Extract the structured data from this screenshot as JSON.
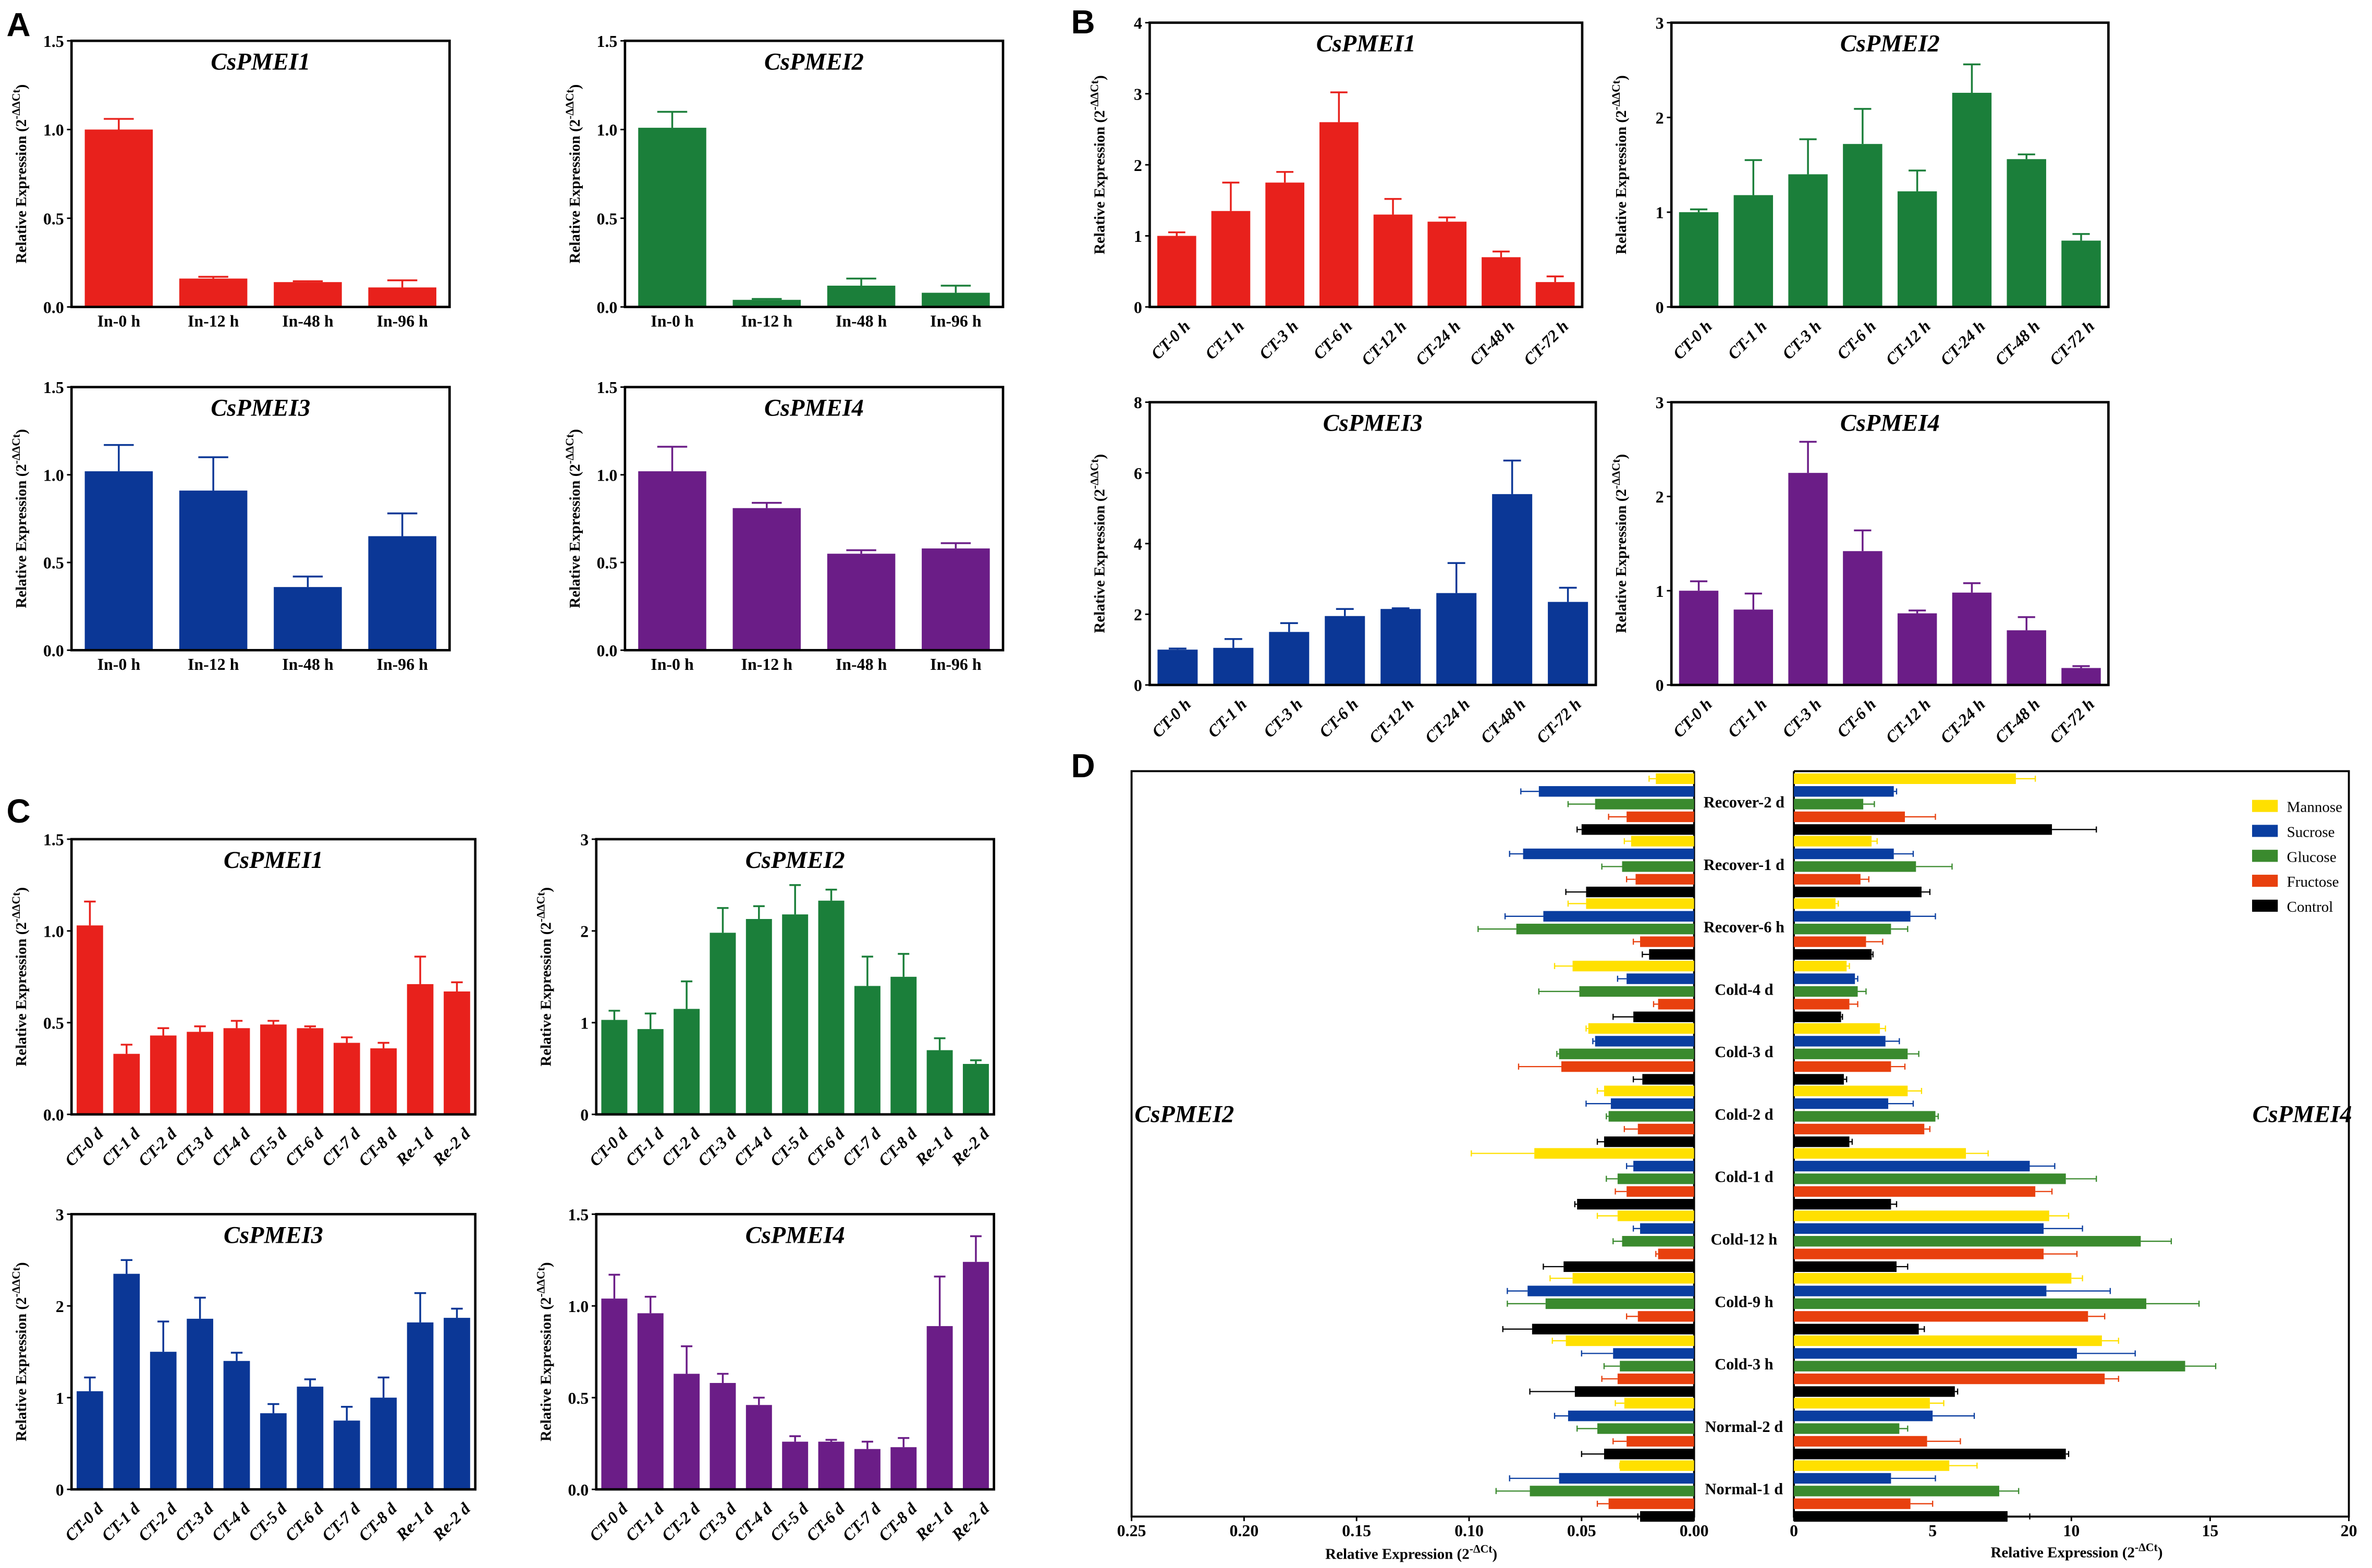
{
  "panels": {
    "A": "A",
    "B": "B",
    "C": "C",
    "D": "D"
  },
  "ylabel": [
    "Relative Expression (2",
    "-ΔΔCt",
    ")"
  ],
  "colors": {
    "red": "#e8211c",
    "green": "#1b7f3a",
    "blue": "#0b3796",
    "purple": "#6b1d87"
  },
  "chart_data": [
    {
      "panel": "A",
      "type": "bar",
      "title": "CsPMEI1",
      "color": "#e8211c",
      "categories": [
        "In-0 h",
        "In-12 h",
        "In-48 h",
        "In-96 h"
      ],
      "values": [
        1.0,
        0.16,
        0.14,
        0.11
      ],
      "errors": [
        0.06,
        0.01,
        0.005,
        0.04
      ],
      "ylim": [
        0,
        1.5
      ],
      "yticks": [
        0,
        0.5,
        1.0,
        1.5
      ],
      "yticklabels": [
        "0.0",
        "0.5",
        "1.0",
        "1.5"
      ]
    },
    {
      "panel": "A",
      "type": "bar",
      "title": "CsPMEI2",
      "color": "#1b7f3a",
      "categories": [
        "In-0 h",
        "In-12 h",
        "In-48 h",
        "In-96 h"
      ],
      "values": [
        1.01,
        0.04,
        0.12,
        0.08
      ],
      "errors": [
        0.09,
        0.005,
        0.04,
        0.04
      ],
      "ylim": [
        0,
        1.5
      ],
      "yticks": [
        0,
        0.5,
        1.0,
        1.5
      ],
      "yticklabels": [
        "0.0",
        "0.5",
        "1.0",
        "1.5"
      ]
    },
    {
      "panel": "A",
      "type": "bar",
      "title": "CsPMEI3",
      "color": "#0b3796",
      "categories": [
        "In-0 h",
        "In-12 h",
        "In-48 h",
        "In-96 h"
      ],
      "values": [
        1.02,
        0.91,
        0.36,
        0.65
      ],
      "errors": [
        0.15,
        0.19,
        0.06,
        0.13
      ],
      "ylim": [
        0,
        1.5
      ],
      "yticks": [
        0,
        0.5,
        1.0,
        1.5
      ],
      "yticklabels": [
        "0.0",
        "0.5",
        "1.0",
        "1.5"
      ]
    },
    {
      "panel": "A",
      "type": "bar",
      "title": "CsPMEI4",
      "color": "#6b1d87",
      "categories": [
        "In-0 h",
        "In-12 h",
        "In-48 h",
        "In-96 h"
      ],
      "values": [
        1.02,
        0.81,
        0.55,
        0.58
      ],
      "errors": [
        0.14,
        0.03,
        0.02,
        0.03
      ],
      "ylim": [
        0,
        1.5
      ],
      "yticks": [
        0,
        0.5,
        1.0,
        1.5
      ],
      "yticklabels": [
        "0.0",
        "0.5",
        "1.0",
        "1.5"
      ]
    },
    {
      "panel": "B",
      "type": "bar",
      "title": "CsPMEI1",
      "color": "#e8211c",
      "categories": [
        "CT-0 h",
        "CT-1 h",
        "CT-3 h",
        "CT-6 h",
        "CT-12 h",
        "CT-24 h",
        "CT-48 h",
        "CT-72 h"
      ],
      "values": [
        1.0,
        1.35,
        1.75,
        2.6,
        1.3,
        1.2,
        0.7,
        0.35
      ],
      "errors": [
        0.05,
        0.4,
        0.15,
        0.42,
        0.22,
        0.06,
        0.08,
        0.08
      ],
      "ylim": [
        0,
        4
      ],
      "yticks": [
        0,
        1,
        2,
        3,
        4
      ],
      "yticklabels": [
        "0",
        "1",
        "2",
        "3",
        "4"
      ]
    },
    {
      "panel": "B",
      "type": "bar",
      "title": "CsPMEI2",
      "color": "#1b7f3a",
      "categories": [
        "CT-0 h",
        "CT-1 h",
        "CT-3 h",
        "CT-6 h",
        "CT-12 h",
        "CT-24 h",
        "CT-48 h",
        "CT-72 h"
      ],
      "values": [
        1.0,
        1.18,
        1.4,
        1.72,
        1.22,
        2.26,
        1.56,
        0.7
      ],
      "errors": [
        0.03,
        0.37,
        0.37,
        0.37,
        0.22,
        0.3,
        0.05,
        0.07
      ],
      "ylim": [
        0,
        3
      ],
      "yticks": [
        0,
        1,
        2,
        3
      ],
      "yticklabels": [
        "0",
        "1",
        "2",
        "3"
      ]
    },
    {
      "panel": "B",
      "type": "bar",
      "title": "CsPMEI3",
      "color": "#0b3796",
      "categories": [
        "CT-0 h",
        "CT-1 h",
        "CT-3 h",
        "CT-6 h",
        "CT-12 h",
        "CT-24 h",
        "CT-48 h",
        "CT-72 h"
      ],
      "values": [
        1.0,
        1.05,
        1.5,
        1.95,
        2.15,
        2.6,
        5.4,
        2.35
      ],
      "errors": [
        0.03,
        0.25,
        0.25,
        0.2,
        0.02,
        0.85,
        0.95,
        0.4
      ],
      "ylim": [
        0,
        8
      ],
      "yticks": [
        0,
        2,
        4,
        6,
        8
      ],
      "yticklabels": [
        "0",
        "2",
        "4",
        "6",
        "8"
      ]
    },
    {
      "panel": "B",
      "type": "bar",
      "title": "CsPMEI4",
      "color": "#6b1d87",
      "categories": [
        "CT-0 h",
        "CT-1 h",
        "CT-3 h",
        "CT-6 h",
        "CT-12 h",
        "CT-24 h",
        "CT-48 h",
        "CT-72 h"
      ],
      "values": [
        1.0,
        0.8,
        2.25,
        1.42,
        0.76,
        0.98,
        0.58,
        0.18
      ],
      "errors": [
        0.1,
        0.17,
        0.33,
        0.22,
        0.03,
        0.1,
        0.14,
        0.02
      ],
      "ylim": [
        0,
        3
      ],
      "yticks": [
        0,
        1,
        2,
        3
      ],
      "yticklabels": [
        "0",
        "1",
        "2",
        "3"
      ]
    },
    {
      "panel": "C",
      "type": "bar",
      "title": "CsPMEI1",
      "color": "#e8211c",
      "categories": [
        "CT-0 d",
        "CT-1 d",
        "CT-2 d",
        "CT-3 d",
        "CT-4 d",
        "CT-5 d",
        "CT-6 d",
        "CT-7 d",
        "CT-8 d",
        "Re-1 d",
        "Re-2 d"
      ],
      "values": [
        1.03,
        0.33,
        0.43,
        0.45,
        0.47,
        0.49,
        0.47,
        0.39,
        0.36,
        0.71,
        0.67
      ],
      "errors": [
        0.13,
        0.05,
        0.04,
        0.03,
        0.04,
        0.02,
        0.01,
        0.03,
        0.03,
        0.15,
        0.05
      ],
      "ylim": [
        0,
        1.5
      ],
      "yticks": [
        0,
        0.5,
        1.0,
        1.5
      ],
      "yticklabels": [
        "0.0",
        "0.5",
        "1.0",
        "1.5"
      ]
    },
    {
      "panel": "C",
      "type": "bar",
      "title": "CsPMEI2",
      "color": "#1b7f3a",
      "categories": [
        "CT-0 d",
        "CT-1 d",
        "CT-2 d",
        "CT-3 d",
        "CT-4 d",
        "CT-5 d",
        "CT-6 d",
        "CT-7 d",
        "CT-8 d",
        "Re-1 d",
        "Re-2 d"
      ],
      "values": [
        1.03,
        0.93,
        1.15,
        1.98,
        2.13,
        2.18,
        2.33,
        1.4,
        1.5,
        0.7,
        0.55
      ],
      "errors": [
        0.1,
        0.17,
        0.3,
        0.27,
        0.14,
        0.32,
        0.12,
        0.32,
        0.25,
        0.13,
        0.04
      ],
      "ylim": [
        0,
        3
      ],
      "yticks": [
        0,
        1,
        2,
        3
      ],
      "yticklabels": [
        "0",
        "1",
        "2",
        "3"
      ]
    },
    {
      "panel": "C",
      "type": "bar",
      "title": "CsPMEI3",
      "color": "#0b3796",
      "categories": [
        "CT-0 d",
        "CT-1 d",
        "CT-2 d",
        "CT-3 d",
        "CT-4 d",
        "CT-5 d",
        "CT-6 d",
        "CT-7 d",
        "CT-8 d",
        "Re-1 d",
        "Re-2 d"
      ],
      "values": [
        1.07,
        2.35,
        1.5,
        1.86,
        1.4,
        0.83,
        1.12,
        0.75,
        1.0,
        1.82,
        1.87
      ],
      "errors": [
        0.15,
        0.15,
        0.33,
        0.23,
        0.09,
        0.1,
        0.08,
        0.15,
        0.22,
        0.32,
        0.1
      ],
      "ylim": [
        0,
        3
      ],
      "yticks": [
        0,
        1,
        2,
        3
      ],
      "yticklabels": [
        "0",
        "1",
        "2",
        "3"
      ]
    },
    {
      "panel": "C",
      "type": "bar",
      "title": "CsPMEI4",
      "color": "#6b1d87",
      "categories": [
        "CT-0 d",
        "CT-1 d",
        "CT-2 d",
        "CT-3 d",
        "CT-4 d",
        "CT-5 d",
        "CT-6 d",
        "CT-7 d",
        "CT-8 d",
        "Re-1 d",
        "Re-2 d"
      ],
      "values": [
        1.04,
        0.96,
        0.63,
        0.58,
        0.46,
        0.26,
        0.26,
        0.22,
        0.23,
        0.89,
        1.24
      ],
      "errors": [
        0.13,
        0.09,
        0.15,
        0.05,
        0.04,
        0.03,
        0.01,
        0.04,
        0.05,
        0.27,
        0.14
      ],
      "ylim": [
        0,
        1.5
      ],
      "yticks": [
        0,
        0.5,
        1.0,
        1.5
      ],
      "yticklabels": [
        "0.0",
        "0.5",
        "1.0",
        "1.5"
      ]
    },
    {
      "panel": "D",
      "type": "bar",
      "orientation": "horizontal",
      "categories": [
        "Recover-2 d",
        "Recover-1 d",
        "Recover-6 h",
        "Cold-4 d",
        "Cold-3 d",
        "Cold-2 d",
        "Cold-1 d",
        "Cold-12 h",
        "Cold-9 h",
        "Cold-3 h",
        "Normal-2 d",
        "Normal-1 d"
      ],
      "legend": {
        "position": "top-right",
        "entries": [
          "Mannose",
          "Sucrose",
          "Glucose",
          "Fructose",
          "Control"
        ]
      },
      "series_colors": [
        "#ffe000",
        "#0a3ea0",
        "#3a8a2e",
        "#e8400e",
        "#000000"
      ],
      "xlabel": [
        "Relative Expression (2",
        "-ΔCt",
        ")"
      ],
      "left": {
        "gene": "CsPMEI2",
        "xlim": [
          0.25,
          0
        ],
        "xticks": [
          0.25,
          0.2,
          0.15,
          0.1,
          0.05,
          0
        ],
        "xticklabels": [
          "0.25",
          "0.20",
          "0.15",
          "0.10",
          "0.05",
          "0.00"
        ],
        "values": [
          [
            0.017,
            0.069,
            0.044,
            0.03,
            0.05
          ],
          [
            0.028,
            0.076,
            0.032,
            0.026,
            0.048
          ],
          [
            0.048,
            0.067,
            0.079,
            0.024,
            0.02
          ],
          [
            0.054,
            0.03,
            0.051,
            0.016,
            0.027
          ],
          [
            0.047,
            0.044,
            0.06,
            0.059,
            0.023
          ],
          [
            0.04,
            0.037,
            0.038,
            0.025,
            0.04
          ],
          [
            0.071,
            0.027,
            0.034,
            0.03,
            0.052
          ],
          [
            0.034,
            0.024,
            0.032,
            0.016,
            0.058
          ],
          [
            0.054,
            0.074,
            0.066,
            0.025,
            0.072
          ],
          [
            0.057,
            0.036,
            0.033,
            0.034,
            0.053
          ],
          [
            0.031,
            0.056,
            0.043,
            0.03,
            0.04
          ],
          [
            0.033,
            0.06,
            0.073,
            0.038,
            0.024
          ]
        ],
        "errors": [
          [
            0.003,
            0.008,
            0.012,
            0.008,
            0.002
          ],
          [
            0.003,
            0.006,
            0.009,
            0.004,
            0.009
          ],
          [
            0.008,
            0.017,
            0.017,
            0.003,
            0.003
          ],
          [
            0.008,
            0.004,
            0.018,
            0.002,
            0.009
          ],
          [
            0.001,
            0.001,
            0.001,
            0.019,
            0.004
          ],
          [
            0.003,
            0.011,
            0.001,
            0.006,
            0.003
          ],
          [
            0.028,
            0.003,
            0.005,
            0.005,
            0.001
          ],
          [
            0.009,
            0.003,
            0.004,
            0.001,
            0.009
          ],
          [
            0.01,
            0.009,
            0.017,
            0.005,
            0.013
          ],
          [
            0.006,
            0.014,
            0.007,
            0.007,
            0.02
          ],
          [
            0.004,
            0.006,
            0.009,
            0.006,
            0.01
          ],
          [
            0.0,
            0.022,
            0.015,
            0.005,
            0.001
          ]
        ]
      },
      "right": {
        "gene": "CsPMEI4",
        "xlim": [
          0,
          20
        ],
        "xticks": [
          0,
          5,
          10,
          15,
          20
        ],
        "xticklabels": [
          "0",
          "5",
          "10",
          "15",
          "20"
        ],
        "values": [
          [
            8.0,
            3.6,
            2.5,
            4.0,
            9.3
          ],
          [
            2.8,
            3.6,
            4.4,
            2.4,
            4.6
          ],
          [
            1.5,
            4.2,
            3.5,
            2.6,
            2.8
          ],
          [
            1.9,
            2.2,
            2.3,
            2.0,
            1.7
          ],
          [
            3.1,
            3.3,
            4.1,
            3.5,
            1.8
          ],
          [
            4.1,
            3.4,
            5.1,
            4.7,
            2.0
          ],
          [
            6.2,
            8.5,
            9.8,
            8.7,
            3.5
          ],
          [
            9.2,
            9.0,
            12.5,
            9.0,
            3.7
          ],
          [
            10.0,
            9.1,
            12.7,
            10.6,
            4.5
          ],
          [
            11.1,
            10.2,
            14.1,
            11.2,
            5.8
          ],
          [
            4.9,
            5.0,
            3.8,
            4.8,
            9.8
          ],
          [
            5.6,
            3.5,
            7.4,
            4.2,
            7.7
          ]
        ],
        "errors": [
          [
            0.7,
            0.1,
            0.4,
            1.1,
            1.6
          ],
          [
            0.2,
            0.7,
            1.3,
            0.3,
            0.3
          ],
          [
            0.1,
            0.9,
            0.6,
            0.6,
            0.05
          ],
          [
            0.1,
            0.1,
            0.3,
            0.3,
            0.05
          ],
          [
            0.2,
            0.5,
            0.4,
            0.5,
            0.1
          ],
          [
            0.5,
            0.9,
            0.1,
            0.2,
            0.1
          ],
          [
            0.8,
            0.9,
            1.1,
            0.6,
            0.2
          ],
          [
            0.7,
            1.4,
            1.1,
            1.2,
            0.4
          ],
          [
            0.4,
            2.3,
            1.9,
            0.6,
            0.2
          ],
          [
            0.6,
            2.1,
            1.1,
            0.5,
            0.1
          ],
          [
            0.5,
            1.5,
            0.3,
            1.2,
            0.1
          ],
          [
            1.0,
            1.6,
            0.7,
            0.8,
            0.8
          ]
        ]
      }
    }
  ]
}
